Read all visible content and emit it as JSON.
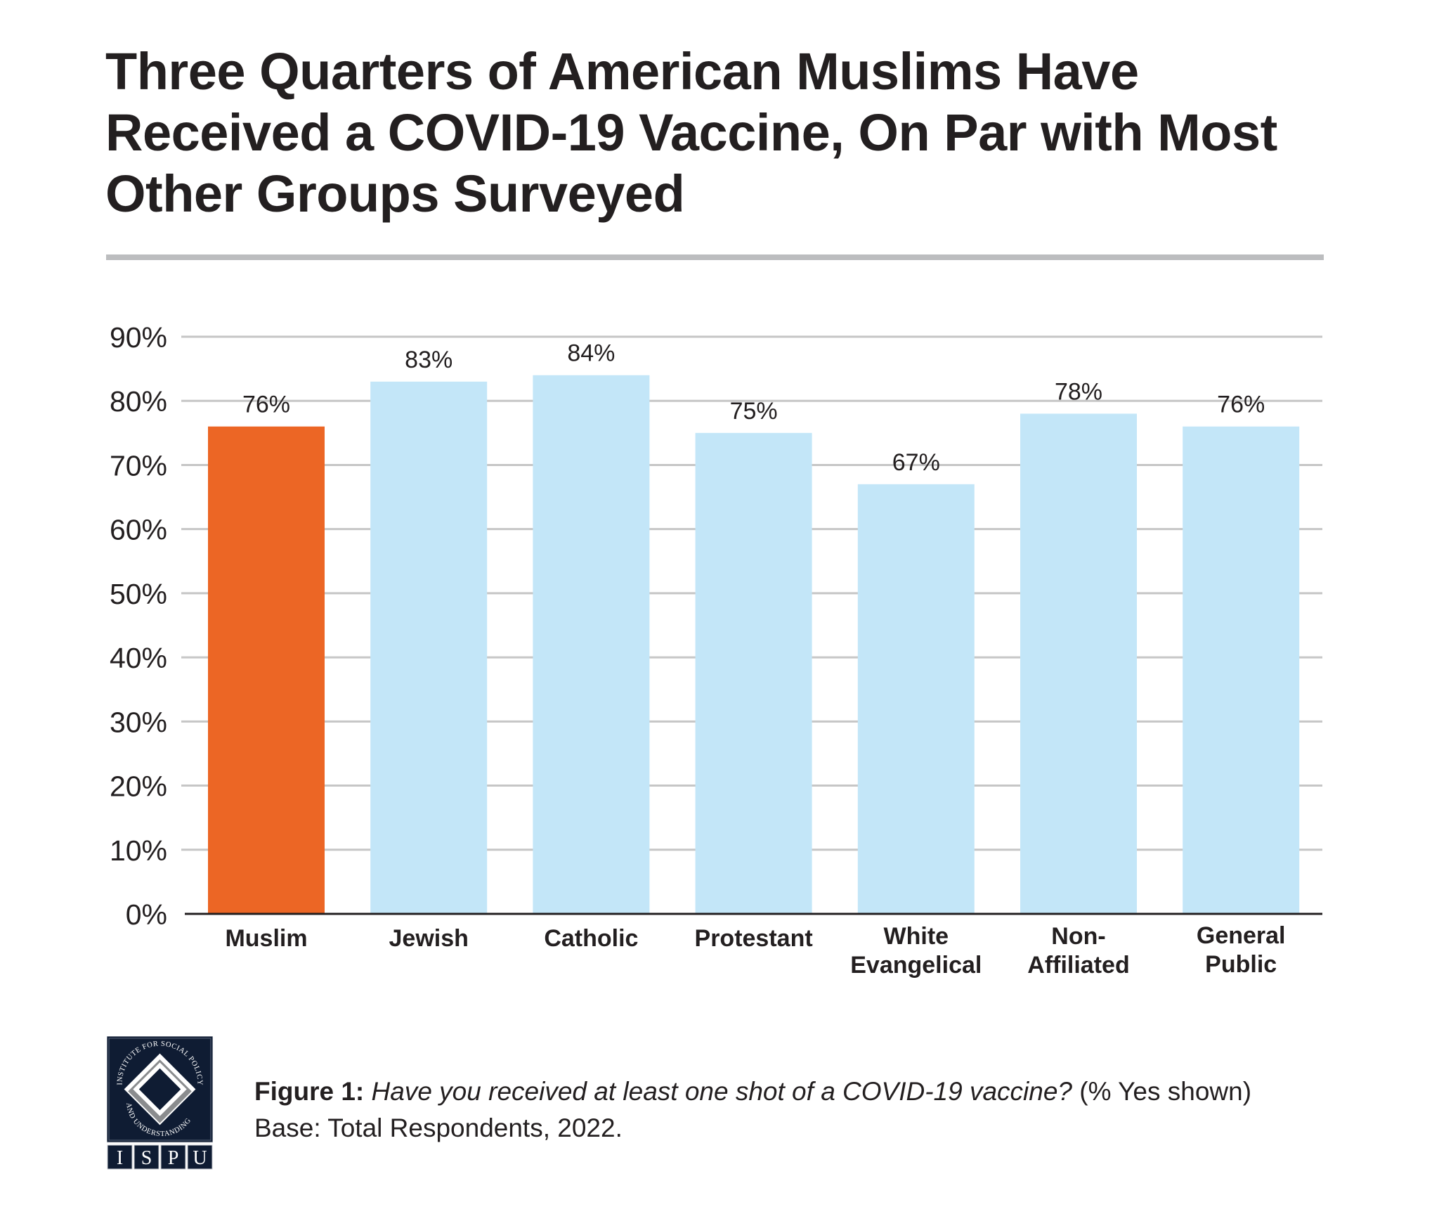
{
  "title": "Three Quarters of American Muslims Have Received a COVID-19 Vaccine, On Par with Most Other Groups Surveyed",
  "title_lines": [
    "Three Quarters of American Muslims Have",
    "Received a COVID-19 Vaccine, On Par with Most",
    "Other Groups Surveyed"
  ],
  "footer": {
    "figure_label": "Figure 1:",
    "question": "Have you received at least one shot of a COVID-19 vaccine?",
    "note": "(% Yes shown)",
    "base": "Base: Total Respondents, 2022."
  },
  "logo": {
    "ring_text": "INSTITUTE FOR SOCIAL POLICY AND UNDERSTANDING",
    "letters": [
      "I",
      "S",
      "P",
      "U"
    ],
    "colors": {
      "background": "#0f1c33",
      "diamond_light": "#ffffff",
      "diamond_gray": "#8a8c8e"
    }
  },
  "colors": {
    "highlight": "#ec6625",
    "bar": "#c3e6f8",
    "gridline": "#c6c6c6",
    "axis": "#231f20",
    "rule": "#bcbdbf"
  },
  "chart_data": {
    "type": "bar",
    "title": "Three Quarters of American Muslims Have Received a COVID-19 Vaccine, On Par with Most Other Groups Surveyed",
    "xlabel": "",
    "ylabel": "",
    "categories": [
      [
        "Muslim"
      ],
      [
        "Jewish"
      ],
      [
        "Catholic"
      ],
      [
        "Protestant"
      ],
      [
        "White",
        "Evangelical"
      ],
      [
        "Non-",
        "Affiliated"
      ],
      [
        "General",
        "Public"
      ]
    ],
    "category_names": [
      "Muslim",
      "Jewish",
      "Catholic",
      "Protestant",
      "White Evangelical",
      "Non-Affiliated",
      "General Public"
    ],
    "values": [
      76,
      83,
      84,
      75,
      67,
      78,
      76
    ],
    "data_labels": [
      "76%",
      "83%",
      "84%",
      "75%",
      "67%",
      "78%",
      "76%"
    ],
    "highlight_index": 0,
    "ylim": [
      0,
      90
    ],
    "yticks": [
      0,
      10,
      20,
      30,
      40,
      50,
      60,
      70,
      80,
      90
    ],
    "ytick_labels": [
      "0%",
      "10%",
      "20%",
      "30%",
      "40%",
      "50%",
      "60%",
      "70%",
      "80%",
      "90%"
    ],
    "grid": true,
    "legend": "none"
  }
}
